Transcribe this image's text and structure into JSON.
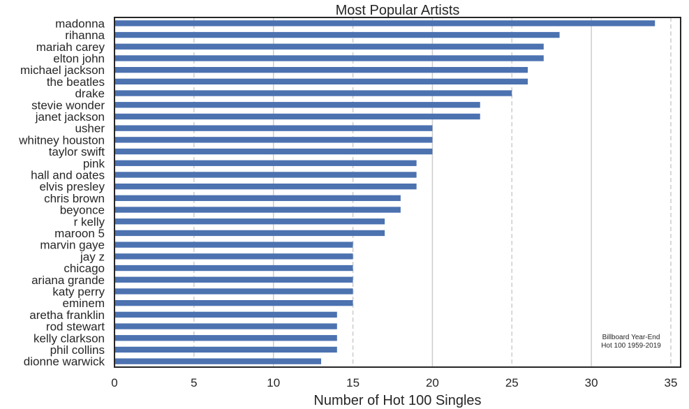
{
  "chart_data": {
    "type": "bar",
    "orientation": "horizontal",
    "title": "Most Popular Artists",
    "xlabel": "Number of Hot 100 Singles",
    "ylabel": "",
    "xlim": [
      0,
      35.8
    ],
    "xticks": [
      0,
      5,
      10,
      15,
      20,
      25,
      30,
      35
    ],
    "grid": "vertical",
    "bar_color": "#4c72b0",
    "grid_color": "#cccccc",
    "annotation": [
      "Billboard Year-End",
      "Hot 100 1959-2019"
    ],
    "categories": [
      "madonna",
      "rihanna",
      "mariah carey",
      "elton john",
      "michael jackson",
      "the beatles",
      "drake",
      "stevie wonder",
      "janet jackson",
      "usher",
      "whitney houston",
      "taylor swift",
      "pink",
      "hall and oates",
      "elvis presley",
      "chris brown",
      "beyonce",
      "r kelly",
      "maroon 5",
      "marvin gaye",
      "jay z",
      "chicago",
      "ariana grande",
      "katy perry",
      "eminem",
      "aretha franklin",
      "rod stewart",
      "kelly clarkson",
      "phil collins",
      "dionne warwick"
    ],
    "values": [
      34,
      28,
      27,
      27,
      26,
      26,
      25,
      23,
      23,
      20,
      20,
      20,
      19,
      19,
      19,
      18,
      18,
      17,
      17,
      15,
      15,
      15,
      15,
      15,
      15,
      14,
      14,
      14,
      14,
      13
    ]
  }
}
